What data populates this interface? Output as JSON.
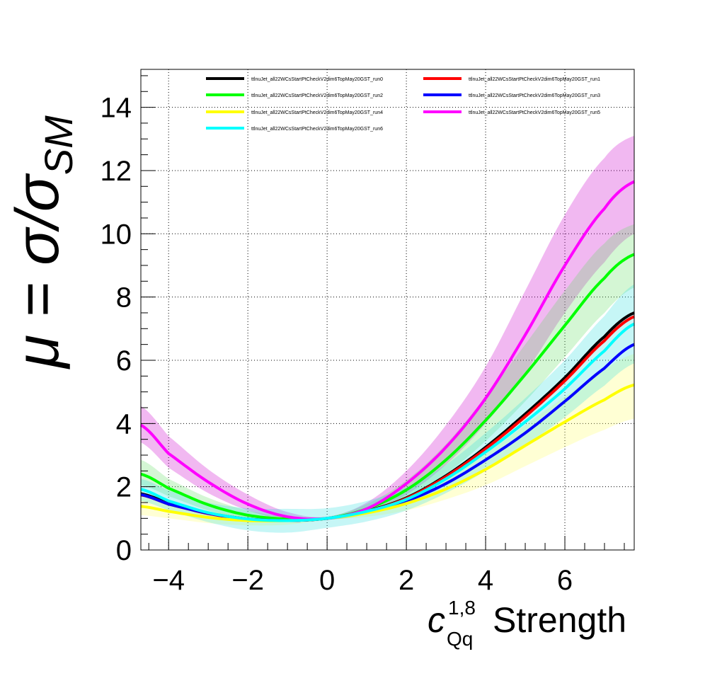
{
  "chart_data": {
    "type": "line",
    "ylabel_main": "μ = σ/σ",
    "ylabel_sub": "SM",
    "xlabel_symbol": "c",
    "xlabel_sup": "1,8",
    "xlabel_sub": "Qq",
    "xlabel_text": "Strength",
    "xlim": [
      -4.7,
      7.75
    ],
    "ylim": [
      0,
      15.2
    ],
    "xticks": [
      -4,
      -2,
      0,
      2,
      4,
      6
    ],
    "xtick_labels": [
      "−4",
      "−2",
      "0",
      "2",
      "4",
      "6"
    ],
    "yticks": [
      0,
      2,
      4,
      6,
      8,
      10,
      12,
      14
    ],
    "ytick_labels": [
      "0",
      "2",
      "4",
      "6",
      "8",
      "10",
      "12",
      "14"
    ],
    "grid": true,
    "legend_placement": "top",
    "x": [
      -4.7,
      -4,
      -3,
      -2,
      -1,
      0,
      1,
      2,
      3,
      4,
      5,
      6,
      7,
      7.75
    ],
    "series": [
      {
        "name": "ttlnuJet_all22WCsStartPtCheckV2dim6TopMay20GST_run0",
        "color": "#000000",
        "values": [
          1.78,
          1.48,
          1.17,
          0.98,
          0.93,
          1.0,
          1.23,
          1.65,
          2.35,
          3.25,
          4.3,
          5.45,
          6.75,
          7.5
        ]
      },
      {
        "name": "ttlnuJet_all22WCsStartPtCheckV2dim6TopMay20GST_run1",
        "color": "#ff0000",
        "values": [
          1.74,
          1.45,
          1.15,
          0.97,
          0.93,
          1.0,
          1.22,
          1.63,
          2.32,
          3.2,
          4.22,
          5.35,
          6.62,
          7.38
        ]
      },
      {
        "name": "ttlnuJet_all22WCsStartPtCheckV2dim6TopMay20GST_run2",
        "color": "#00ff00",
        "values": [
          2.4,
          1.95,
          1.43,
          1.1,
          0.98,
          1.0,
          1.3,
          1.9,
          2.85,
          4.1,
          5.55,
          7.1,
          8.6,
          9.35
        ]
      },
      {
        "name": "ttlnuJet_all22WCsStartPtCheckV2dim6TopMay20GST_run3",
        "color": "#0000ff",
        "values": [
          1.75,
          1.45,
          1.16,
          0.98,
          0.93,
          1.0,
          1.2,
          1.55,
          2.1,
          2.85,
          3.7,
          4.7,
          5.75,
          6.5
        ]
      },
      {
        "name": "ttlnuJet_all22WCsStartPtCheckV2dim6TopMay20GST_run4",
        "color": "#ffff00",
        "values": [
          1.38,
          1.22,
          1.03,
          0.93,
          0.93,
          1.0,
          1.17,
          1.47,
          1.93,
          2.55,
          3.3,
          4.05,
          4.75,
          5.22
        ]
      },
      {
        "name": "ttlnuJet_all22WCsStartPtCheckV2dim6TopMay20GST_run5",
        "color": "#ff00ff",
        "values": [
          3.95,
          3.05,
          2.15,
          1.45,
          1.05,
          1.0,
          1.3,
          2.1,
          3.25,
          4.8,
          6.8,
          9.0,
          10.8,
          11.65
        ]
      },
      {
        "name": "ttlnuJet_all22WCsStartPtCheckV2dim6TopMay20GST_run6",
        "color": "#00ffff",
        "values": [
          1.92,
          1.55,
          1.18,
          0.98,
          0.93,
          1.0,
          1.22,
          1.6,
          2.25,
          3.1,
          4.05,
          5.1,
          6.3,
          7.15
        ]
      }
    ],
    "bands": [
      {
        "series": "ttlnuJet_all22WCsStartPtCheckV2dim6TopMay20GST_run5",
        "color": "#cc00cc",
        "lower": [
          3.4,
          2.6,
          1.8,
          1.25,
          0.95,
          0.95,
          1.15,
          1.75,
          2.7,
          4.0,
          5.6,
          7.5,
          9.1,
          10.0
        ],
        "upper": [
          4.55,
          3.6,
          2.55,
          1.75,
          1.2,
          1.05,
          1.5,
          2.5,
          3.95,
          5.8,
          8.2,
          10.6,
          12.4,
          13.1
        ]
      },
      {
        "series": "ttlnuJet_all22WCsStartPtCheckV2dim6TopMay20GST_run2",
        "color": "#66dd66",
        "lower": [
          2.05,
          1.7,
          1.25,
          0.98,
          0.9,
          0.95,
          1.15,
          1.65,
          2.4,
          3.45,
          4.7,
          6.1,
          7.5,
          8.3
        ],
        "upper": [
          2.85,
          2.25,
          1.65,
          1.25,
          1.05,
          1.05,
          1.45,
          2.2,
          3.35,
          4.85,
          6.5,
          8.2,
          9.7,
          10.3
        ]
      },
      {
        "series": "ttlnuJet_all22WCsStartPtCheckV2dim6TopMay20GST_run4",
        "color": "#ffff66",
        "lower": [
          1.1,
          1.0,
          0.85,
          0.78,
          0.8,
          0.95,
          1.05,
          1.25,
          1.6,
          2.05,
          2.65,
          3.25,
          3.8,
          4.15
        ],
        "upper": [
          1.65,
          1.45,
          1.22,
          1.1,
          1.05,
          1.05,
          1.3,
          1.72,
          2.3,
          3.05,
          3.95,
          4.85,
          5.7,
          6.2
        ]
      },
      {
        "series": "ttlnuJet_all22WCsStartPtCheckV2dim6TopMay20GST_run6",
        "color": "#33dddd",
        "lower": [
          1.55,
          1.25,
          0.88,
          0.62,
          0.55,
          0.7,
          0.9,
          1.25,
          1.8,
          2.5,
          3.3,
          4.2,
          5.2,
          5.9
        ],
        "upper": [
          2.25,
          1.88,
          1.5,
          1.32,
          1.3,
          1.32,
          1.55,
          1.98,
          2.7,
          3.7,
          4.8,
          6.0,
          7.4,
          8.4
        ]
      }
    ]
  }
}
